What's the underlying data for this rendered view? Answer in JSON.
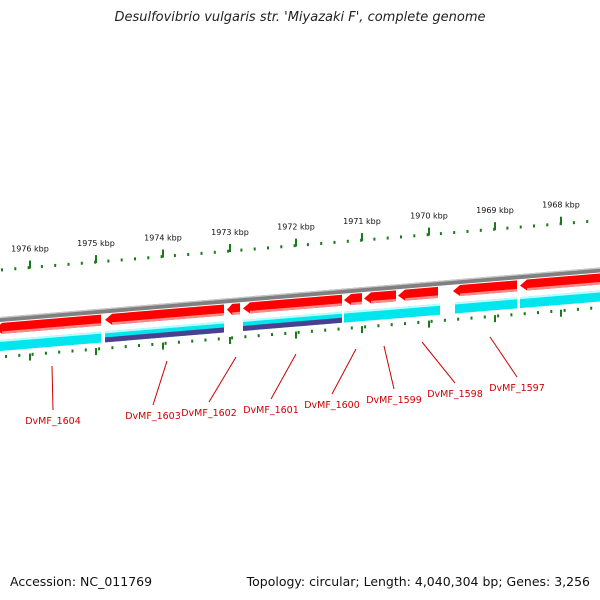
{
  "title": "Desulfovibrio vulgaris str. 'Miyazaki F', complete genome",
  "footer": {
    "accession": "Accession: NC_011769",
    "summary": "Topology: circular; Length: 4,040,304 bp; Genes: 3,256"
  },
  "ruler": {
    "labels": [
      "1976 kbp",
      "1975 kbp",
      "1974 kbp",
      "1973 kbp",
      "1972 kbp",
      "1971 kbp",
      "1970 kbp",
      "1969 kbp",
      "1968 kbp"
    ]
  },
  "genes": [
    "DvMF_1604",
    "DvMF_1603",
    "DvMF_1602",
    "DvMF_1601",
    "DvMF_1600",
    "DvMF_1599",
    "DvMF_1598",
    "DvMF_1597"
  ],
  "colors": {
    "gene": "#ff0000",
    "cds": "#00e5ee",
    "rna": "#4b3f8f",
    "backbone": "#808080",
    "tick": "#1a7a1a",
    "label": "#cc0000"
  }
}
